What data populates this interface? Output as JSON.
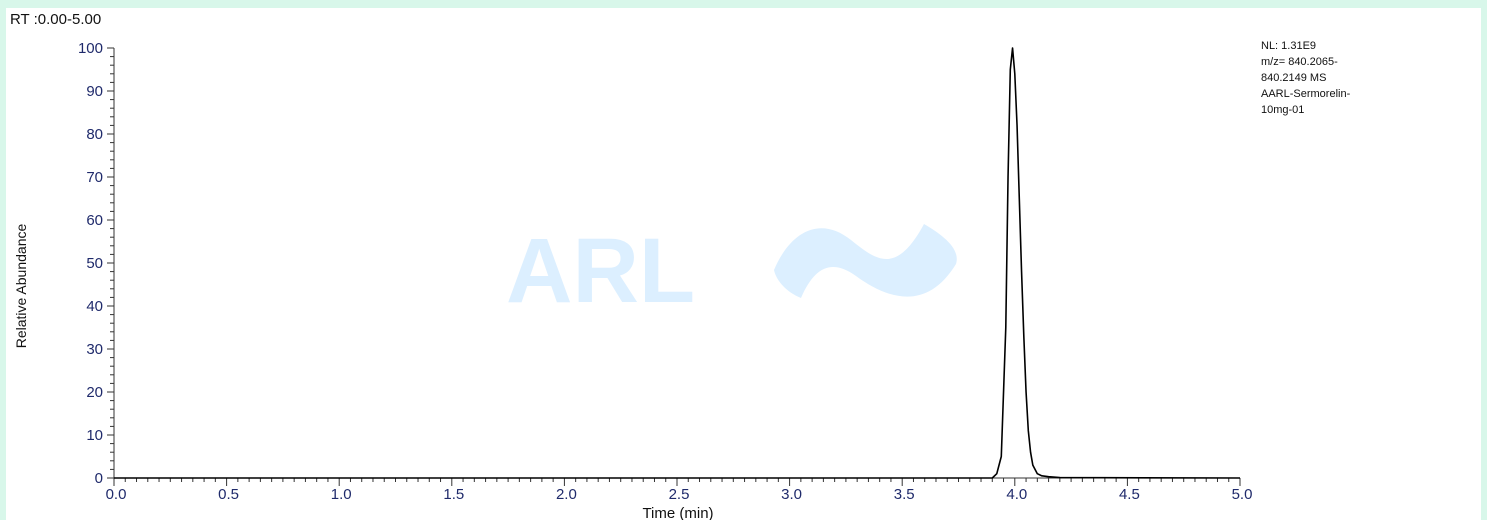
{
  "chart_data": {
    "type": "line",
    "title": "RT :0.00-5.00",
    "xlabel": "Time (min)",
    "ylabel": "Relative Abundance",
    "xlim": [
      0,
      5
    ],
    "ylim": [
      0,
      100
    ],
    "x_ticks": [
      "0.0",
      "0.5",
      "1.0",
      "1.5",
      "2.0",
      "2.5",
      "3.0",
      "3.5",
      "4.0",
      "4.5",
      "5.0"
    ],
    "y_ticks": [
      "0",
      "10",
      "20",
      "30",
      "40",
      "50",
      "60",
      "70",
      "80",
      "90",
      "100"
    ],
    "grid": false,
    "info": {
      "lines": [
        "NL: 1.31E9",
        "m/z= 840.2065-",
        "840.2149 MS",
        "AARL-Sermorelin-",
        "10mg-01"
      ]
    },
    "series": [
      {
        "x": [
          0.0,
          3.9,
          3.92,
          3.94,
          3.96,
          3.97,
          3.98,
          3.99,
          4.0,
          4.01,
          4.02,
          4.03,
          4.04,
          4.05,
          4.06,
          4.07,
          4.08,
          4.1,
          4.12,
          4.15,
          4.2,
          5.0
        ],
        "values": [
          0,
          0,
          1,
          5,
          35,
          70,
          95,
          100,
          94,
          82,
          65,
          48,
          33,
          20,
          11,
          6,
          3,
          1,
          0.5,
          0.3,
          0.1,
          0
        ]
      }
    ]
  },
  "watermark": {
    "text": "ARL",
    "color": "#dcefff"
  },
  "colors": {
    "trace": "#000000",
    "axis": "#333333",
    "tick_text": "#1f2a6b",
    "background": "#d8f7ea"
  }
}
